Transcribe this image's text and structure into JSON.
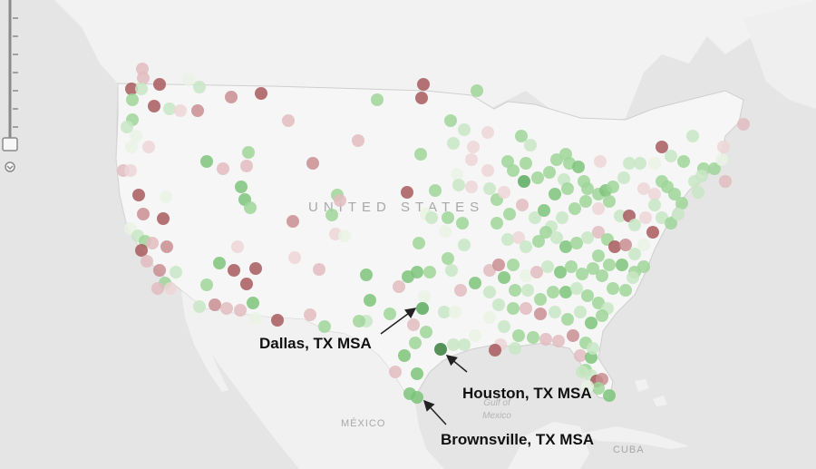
{
  "map": {
    "colors": {
      "water": "#e5e5e5",
      "land": "#f3f3f3",
      "land_us": "#f6f6f6",
      "border": "#c8c8c8",
      "dot_palette": [
        "#a85a5e",
        "#c98e92",
        "#e2bcbf",
        "#edd6d6",
        "#e9f3e4",
        "#c8e6c4",
        "#9fd69a",
        "#7cc47a",
        "#5aab5e",
        "#3a7f3e"
      ]
    },
    "labels": {
      "country_us": "UNITED STATES",
      "country_mx": "MÉXICO",
      "gulf": "Gulf of Mexico",
      "cuba": "CUBA"
    },
    "callouts": {
      "dallas": "Dallas, TX MSA",
      "houston": "Houston, TX MSA",
      "brownsville": "Brownsville, TX MSA"
    },
    "zoom_control": {
      "icons": [
        "zoom-slider-track-icon",
        "zoom-slider-handle-icon",
        "zoom-out-icon"
      ],
      "level": 0.18
    }
  }
}
